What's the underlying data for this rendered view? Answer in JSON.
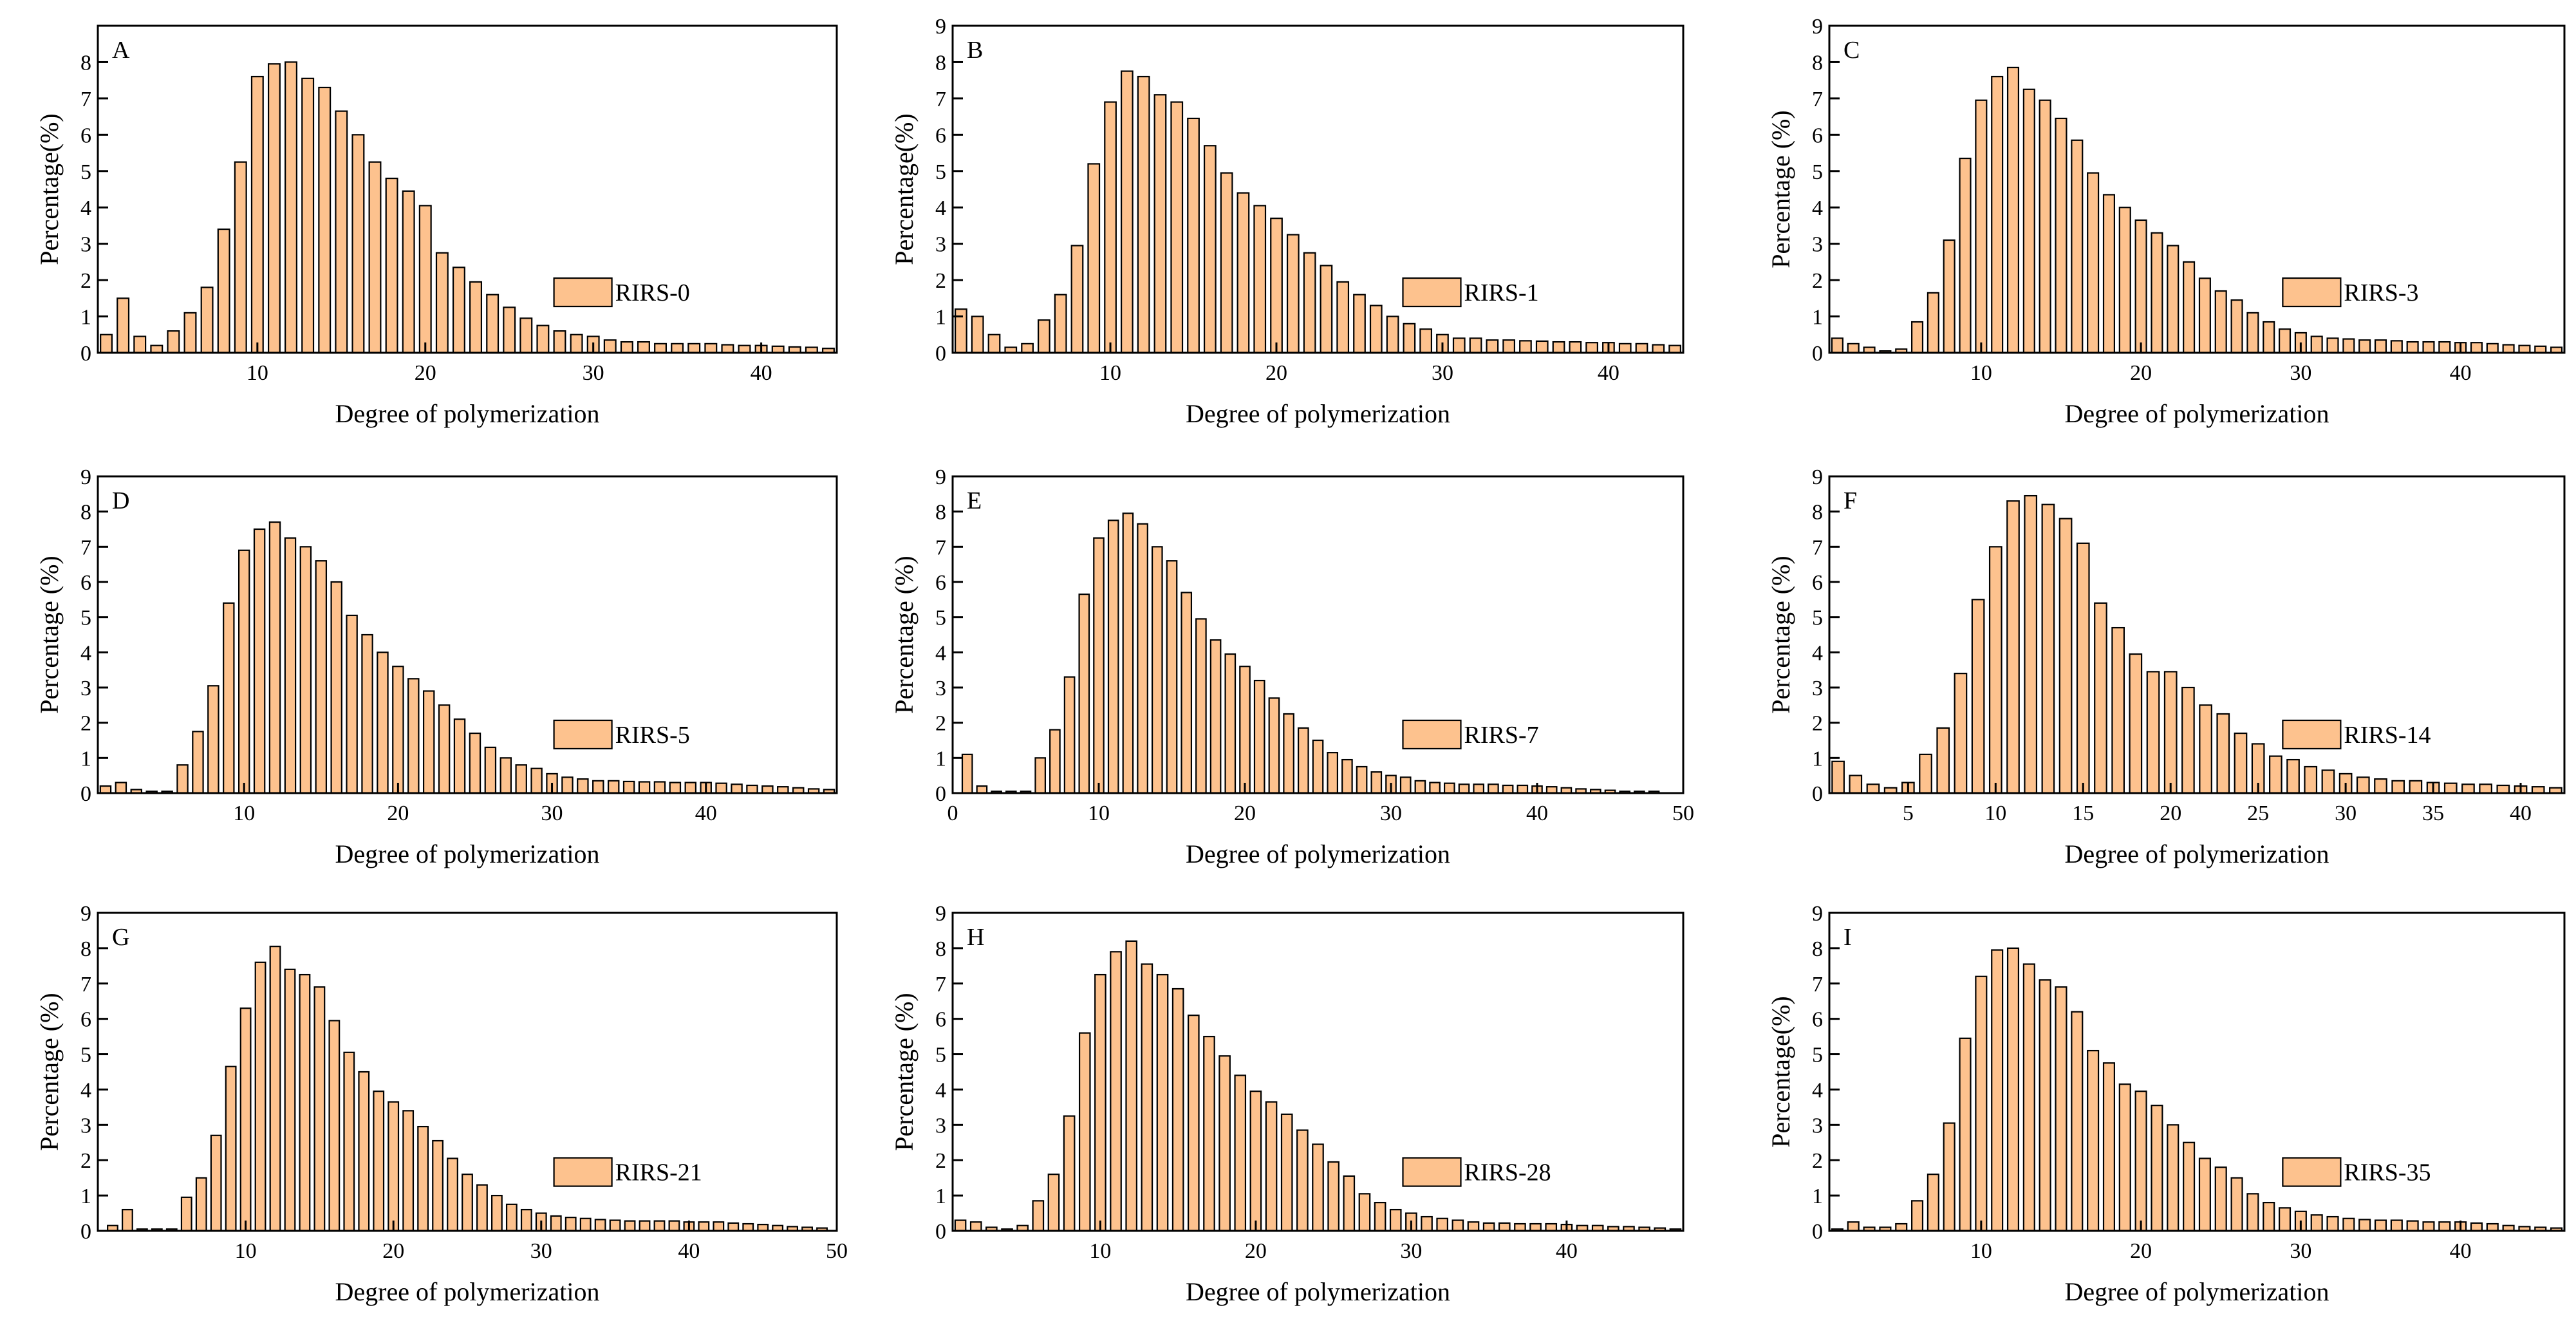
{
  "figure": {
    "x_axis_title": "Degree of polymerization",
    "bar_color": "#fdc28e",
    "bar_stroke": "#000000"
  },
  "chart_data": [
    {
      "type": "bar",
      "panel": "A",
      "title": "A",
      "legend": "RIRS-0",
      "xlabel": "Degree of polymerization",
      "ylabel": "Percentage(%)",
      "xlim": [
        0.5,
        44.5
      ],
      "ylim": [
        0,
        9
      ],
      "xticks": [
        10,
        20,
        30,
        40
      ],
      "yticks": [
        0,
        1,
        2,
        3,
        4,
        5,
        6,
        7,
        8
      ],
      "x": [
        1,
        2,
        3,
        4,
        5,
        6,
        7,
        8,
        9,
        10,
        11,
        12,
        13,
        14,
        15,
        16,
        17,
        18,
        19,
        20,
        21,
        22,
        23,
        24,
        25,
        26,
        27,
        28,
        29,
        30,
        31,
        32,
        33,
        34,
        35,
        36,
        37,
        38,
        39,
        40,
        41,
        42,
        43,
        44
      ],
      "values": [
        0.5,
        1.5,
        0.45,
        0.2,
        0.6,
        1.1,
        1.8,
        3.4,
        5.25,
        7.6,
        7.95,
        8.0,
        7.55,
        7.3,
        6.65,
        6.0,
        5.25,
        4.8,
        4.45,
        4.05,
        2.75,
        2.35,
        1.95,
        1.6,
        1.25,
        0.95,
        0.75,
        0.6,
        0.5,
        0.45,
        0.35,
        0.3,
        0.3,
        0.25,
        0.25,
        0.25,
        0.25,
        0.22,
        0.2,
        0.2,
        0.18,
        0.16,
        0.15,
        0.12
      ]
    },
    {
      "type": "bar",
      "panel": "B",
      "title": "B",
      "legend": "RIRS-1",
      "xlabel": "Degree of polymerization",
      "ylabel": "Percentage(%)",
      "xlim": [
        0.5,
        44.5
      ],
      "ylim": [
        0,
        9
      ],
      "xticks": [
        10,
        20,
        30,
        40
      ],
      "yticks": [
        0,
        1,
        2,
        3,
        4,
        5,
        6,
        7,
        8,
        9
      ],
      "x": [
        1,
        2,
        3,
        4,
        5,
        6,
        7,
        8,
        9,
        10,
        11,
        12,
        13,
        14,
        15,
        16,
        17,
        18,
        19,
        20,
        21,
        22,
        23,
        24,
        25,
        26,
        27,
        28,
        29,
        30,
        31,
        32,
        33,
        34,
        35,
        36,
        37,
        38,
        39,
        40,
        41,
        42,
        43,
        44
      ],
      "values": [
        1.2,
        1.0,
        0.5,
        0.15,
        0.25,
        0.9,
        1.6,
        2.95,
        5.2,
        6.9,
        7.75,
        7.6,
        7.1,
        6.9,
        6.45,
        5.7,
        4.95,
        4.4,
        4.05,
        3.7,
        3.25,
        2.75,
        2.4,
        1.95,
        1.6,
        1.3,
        1.0,
        0.8,
        0.65,
        0.5,
        0.4,
        0.4,
        0.35,
        0.35,
        0.33,
        0.32,
        0.3,
        0.3,
        0.28,
        0.28,
        0.25,
        0.25,
        0.22,
        0.2
      ]
    },
    {
      "type": "bar",
      "panel": "C",
      "title": "C",
      "legend": "RIRS-3",
      "xlabel": "Degree of polymerization",
      "ylabel": "Percentage (%)",
      "xlim": [
        0.5,
        46.5
      ],
      "ylim": [
        0,
        9
      ],
      "xticks": [
        10,
        20,
        30,
        40
      ],
      "yticks": [
        0,
        1,
        2,
        3,
        4,
        5,
        6,
        7,
        8,
        9
      ],
      "x": [
        1,
        2,
        3,
        4,
        5,
        6,
        7,
        8,
        9,
        10,
        11,
        12,
        13,
        14,
        15,
        16,
        17,
        18,
        19,
        20,
        21,
        22,
        23,
        24,
        25,
        26,
        27,
        28,
        29,
        30,
        31,
        32,
        33,
        34,
        35,
        36,
        37,
        38,
        39,
        40,
        41,
        42,
        43,
        44,
        45,
        46
      ],
      "values": [
        0.4,
        0.25,
        0.15,
        0.05,
        0.1,
        0.85,
        1.65,
        3.1,
        5.35,
        6.95,
        7.6,
        7.85,
        7.25,
        6.95,
        6.45,
        5.85,
        4.95,
        4.35,
        4.0,
        3.65,
        3.3,
        2.95,
        2.5,
        2.05,
        1.7,
        1.45,
        1.1,
        0.85,
        0.65,
        0.55,
        0.45,
        0.4,
        0.38,
        0.35,
        0.35,
        0.33,
        0.3,
        0.3,
        0.3,
        0.28,
        0.28,
        0.25,
        0.22,
        0.2,
        0.18,
        0.15
      ]
    },
    {
      "type": "bar",
      "panel": "D",
      "title": "D",
      "legend": "RIRS-5",
      "xlabel": "Degree of polymerization",
      "ylabel": "Percentage (%)",
      "xlim": [
        0.5,
        48.5
      ],
      "ylim": [
        0,
        9
      ],
      "xticks": [
        10,
        20,
        30,
        40
      ],
      "yticks": [
        0,
        1,
        2,
        3,
        4,
        5,
        6,
        7,
        8,
        9
      ],
      "x": [
        1,
        2,
        3,
        4,
        5,
        6,
        7,
        8,
        9,
        10,
        11,
        12,
        13,
        14,
        15,
        16,
        17,
        18,
        19,
        20,
        21,
        22,
        23,
        24,
        25,
        26,
        27,
        28,
        29,
        30,
        31,
        32,
        33,
        34,
        35,
        36,
        37,
        38,
        39,
        40,
        41,
        42,
        43,
        44,
        45,
        46,
        47,
        48
      ],
      "values": [
        0.2,
        0.3,
        0.1,
        0.05,
        0.05,
        0.8,
        1.75,
        3.05,
        5.4,
        6.9,
        7.5,
        7.7,
        7.25,
        7.0,
        6.6,
        6.0,
        5.05,
        4.5,
        4.0,
        3.6,
        3.25,
        2.9,
        2.5,
        2.1,
        1.7,
        1.3,
        1.0,
        0.8,
        0.7,
        0.55,
        0.45,
        0.4,
        0.35,
        0.35,
        0.33,
        0.32,
        0.32,
        0.3,
        0.3,
        0.3,
        0.28,
        0.25,
        0.22,
        0.2,
        0.18,
        0.15,
        0.12,
        0.1
      ]
    },
    {
      "type": "bar",
      "panel": "E",
      "title": "E",
      "legend": "RIRS-7",
      "xlabel": "Degree of polymerization",
      "ylabel": "Percentage (%)",
      "xlim": [
        0,
        50
      ],
      "ylim": [
        0,
        9
      ],
      "xticks": [
        0,
        10,
        20,
        30,
        40,
        50
      ],
      "yticks": [
        0,
        1,
        2,
        3,
        4,
        5,
        6,
        7,
        8,
        9
      ],
      "x": [
        1,
        2,
        3,
        4,
        5,
        6,
        7,
        8,
        9,
        10,
        11,
        12,
        13,
        14,
        15,
        16,
        17,
        18,
        19,
        20,
        21,
        22,
        23,
        24,
        25,
        26,
        27,
        28,
        29,
        30,
        31,
        32,
        33,
        34,
        35,
        36,
        37,
        38,
        39,
        40,
        41,
        42,
        43,
        44,
        45,
        46,
        47,
        48
      ],
      "values": [
        1.1,
        0.2,
        0.05,
        0.05,
        0.05,
        1.0,
        1.8,
        3.3,
        5.65,
        7.25,
        7.75,
        7.95,
        7.65,
        7.0,
        6.6,
        5.7,
        4.95,
        4.35,
        3.95,
        3.6,
        3.2,
        2.7,
        2.25,
        1.85,
        1.5,
        1.15,
        0.95,
        0.75,
        0.6,
        0.5,
        0.45,
        0.35,
        0.3,
        0.28,
        0.25,
        0.25,
        0.25,
        0.22,
        0.22,
        0.2,
        0.18,
        0.15,
        0.12,
        0.1,
        0.08,
        0.05,
        0.05,
        0.05
      ]
    },
    {
      "type": "bar",
      "panel": "F",
      "title": "F",
      "legend": "RIRS-14",
      "xlabel": "Degree of polymerization",
      "ylabel": "Percentage (%)",
      "xlim": [
        0.5,
        42.5
      ],
      "ylim": [
        0,
        9
      ],
      "xticks": [
        5,
        10,
        15,
        20,
        25,
        30,
        35,
        40
      ],
      "yticks": [
        0,
        1,
        2,
        3,
        4,
        5,
        6,
        7,
        8,
        9
      ],
      "x": [
        1,
        2,
        3,
        4,
        5,
        6,
        7,
        8,
        9,
        10,
        11,
        12,
        13,
        14,
        15,
        16,
        17,
        18,
        19,
        20,
        21,
        22,
        23,
        24,
        25,
        26,
        27,
        28,
        29,
        30,
        31,
        32,
        33,
        34,
        35,
        36,
        37,
        38,
        39,
        40,
        41,
        42
      ],
      "values": [
        0.9,
        0.5,
        0.25,
        0.15,
        0.3,
        1.1,
        1.85,
        3.4,
        5.5,
        7.0,
        8.3,
        8.45,
        8.2,
        7.8,
        7.1,
        5.4,
        4.7,
        3.95,
        3.45,
        3.45,
        3.0,
        2.5,
        2.25,
        1.7,
        1.4,
        1.05,
        0.95,
        0.75,
        0.65,
        0.55,
        0.45,
        0.4,
        0.35,
        0.35,
        0.3,
        0.28,
        0.25,
        0.25,
        0.22,
        0.2,
        0.18,
        0.15
      ]
    },
    {
      "type": "bar",
      "panel": "G",
      "title": "G",
      "legend": "RIRS-21",
      "xlabel": "Degree of polymerization",
      "ylabel": "Percentage (%)",
      "xlim": [
        0,
        50
      ],
      "ylim": [
        0,
        9
      ],
      "xticks": [
        10,
        20,
        30,
        40,
        50
      ],
      "yticks": [
        0,
        1,
        2,
        3,
        4,
        5,
        6,
        7,
        8,
        9
      ],
      "x": [
        1,
        2,
        3,
        4,
        5,
        6,
        7,
        8,
        9,
        10,
        11,
        12,
        13,
        14,
        15,
        16,
        17,
        18,
        19,
        20,
        21,
        22,
        23,
        24,
        25,
        26,
        27,
        28,
        29,
        30,
        31,
        32,
        33,
        34,
        35,
        36,
        37,
        38,
        39,
        40,
        41,
        42,
        43,
        44,
        45,
        46,
        47,
        48,
        49
      ],
      "values": [
        0.15,
        0.6,
        0.05,
        0.05,
        0.05,
        0.95,
        1.5,
        2.7,
        4.65,
        6.3,
        7.6,
        8.05,
        7.4,
        7.25,
        6.9,
        5.95,
        5.05,
        4.5,
        3.95,
        3.65,
        3.4,
        2.95,
        2.55,
        2.05,
        1.6,
        1.3,
        1.0,
        0.75,
        0.6,
        0.5,
        0.42,
        0.38,
        0.35,
        0.32,
        0.3,
        0.28,
        0.28,
        0.28,
        0.28,
        0.25,
        0.25,
        0.25,
        0.22,
        0.2,
        0.18,
        0.15,
        0.12,
        0.1,
        0.08
      ]
    },
    {
      "type": "bar",
      "panel": "H",
      "title": "H",
      "legend": "RIRS-28",
      "xlabel": "Degree of polymerization",
      "ylabel": "Percentage (%)",
      "xlim": [
        0.5,
        47.5
      ],
      "ylim": [
        0,
        9
      ],
      "xticks": [
        10,
        20,
        30,
        40
      ],
      "yticks": [
        0,
        1,
        2,
        3,
        4,
        5,
        6,
        7,
        8,
        9
      ],
      "x": [
        1,
        2,
        3,
        4,
        5,
        6,
        7,
        8,
        9,
        10,
        11,
        12,
        13,
        14,
        15,
        16,
        17,
        18,
        19,
        20,
        21,
        22,
        23,
        24,
        25,
        26,
        27,
        28,
        29,
        30,
        31,
        32,
        33,
        34,
        35,
        36,
        37,
        38,
        39,
        40,
        41,
        42,
        43,
        44,
        45,
        46,
        47
      ],
      "values": [
        0.3,
        0.25,
        0.1,
        0.05,
        0.15,
        0.85,
        1.6,
        3.25,
        5.6,
        7.25,
        7.9,
        8.2,
        7.55,
        7.25,
        6.85,
        6.1,
        5.5,
        4.95,
        4.4,
        3.95,
        3.65,
        3.3,
        2.85,
        2.45,
        1.95,
        1.55,
        1.05,
        0.8,
        0.6,
        0.5,
        0.4,
        0.35,
        0.3,
        0.25,
        0.22,
        0.22,
        0.2,
        0.2,
        0.2,
        0.18,
        0.15,
        0.15,
        0.12,
        0.12,
        0.1,
        0.08,
        0.05
      ]
    },
    {
      "type": "bar",
      "panel": "I",
      "title": "I",
      "legend": "RIRS-35",
      "xlabel": "Degree of polymerization",
      "ylabel": "Percentage(%)",
      "xlim": [
        0.5,
        46.5
      ],
      "ylim": [
        0,
        9
      ],
      "xticks": [
        10,
        20,
        30,
        40
      ],
      "yticks": [
        0,
        1,
        2,
        3,
        4,
        5,
        6,
        7,
        8,
        9
      ],
      "x": [
        1,
        2,
        3,
        4,
        5,
        6,
        7,
        8,
        9,
        10,
        11,
        12,
        13,
        14,
        15,
        16,
        17,
        18,
        19,
        20,
        21,
        22,
        23,
        24,
        25,
        26,
        27,
        28,
        29,
        30,
        31,
        32,
        33,
        34,
        35,
        36,
        37,
        38,
        39,
        40,
        41,
        42,
        43,
        44,
        45,
        46
      ],
      "values": [
        0.05,
        0.25,
        0.1,
        0.1,
        0.2,
        0.85,
        1.6,
        3.05,
        5.45,
        7.2,
        7.95,
        8.0,
        7.55,
        7.1,
        6.9,
        6.2,
        5.1,
        4.75,
        4.15,
        3.95,
        3.55,
        3.0,
        2.5,
        2.05,
        1.8,
        1.5,
        1.05,
        0.8,
        0.65,
        0.55,
        0.45,
        0.4,
        0.35,
        0.32,
        0.3,
        0.3,
        0.28,
        0.25,
        0.25,
        0.25,
        0.22,
        0.2,
        0.15,
        0.12,
        0.1,
        0.08
      ]
    }
  ]
}
